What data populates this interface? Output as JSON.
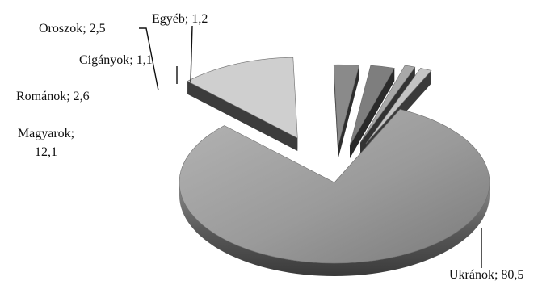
{
  "chart_data": {
    "type": "pie",
    "style": "3d-exploded",
    "title": "",
    "labels": [
      "Ukránok",
      "Magyarok",
      "Románok",
      "Oroszok",
      "Cigányok",
      "Egyéb"
    ],
    "values": [
      80.5,
      12.1,
      2.6,
      2.5,
      1.1,
      1.2
    ],
    "value_labels": [
      "80,5",
      "12,1",
      "2,6",
      "2,5",
      "1,1",
      "1,2"
    ],
    "separator": "; ",
    "legend": "none",
    "colors": {
      "Ukránok": "#9a9a9a",
      "Magyarok": "#cfcfcf",
      "Románok": "#8a8a8a",
      "Oroszok": "#7e7e7e",
      "Cigányok": "#a8a8a8",
      "Egyéb": "#c4c4c4"
    }
  }
}
